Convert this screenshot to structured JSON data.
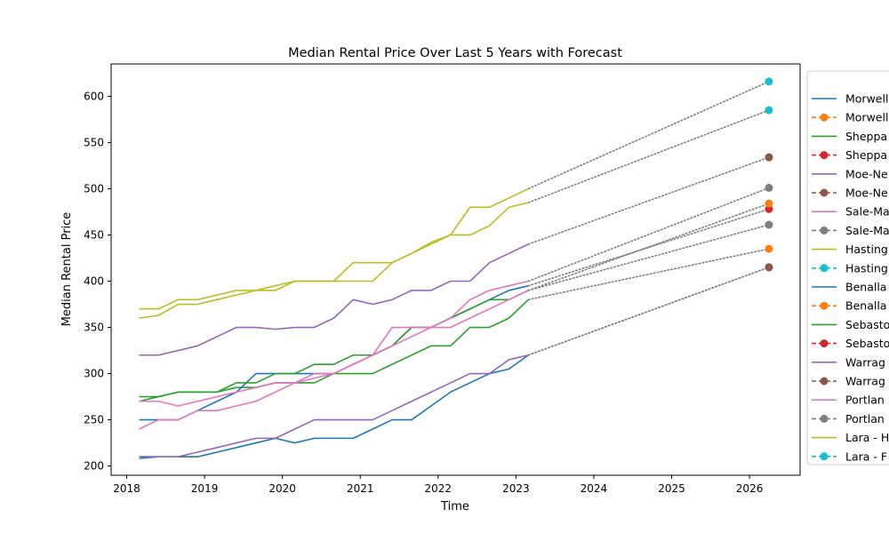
{
  "chart_data": {
    "type": "line",
    "title": "Median Rental Price Over Last 5 Years with Forecast",
    "xlabel": "Time",
    "ylabel": "Median Rental Price",
    "xlim": [
      2017.8,
      2026.65
    ],
    "ylim": [
      190,
      635
    ],
    "x_ticks": [
      2018,
      2019,
      2020,
      2021,
      2022,
      2023,
      2024,
      2025,
      2026
    ],
    "y_ticks": [
      200,
      250,
      300,
      350,
      400,
      450,
      500,
      550,
      600
    ],
    "forecast_x": 2026.25,
    "legend_position": "right, outside plot (clipped)",
    "legend": [
      {
        "label": "Morwell",
        "color": "#1f77b4",
        "style": "line"
      },
      {
        "label": "Morwell",
        "color": "#ff7f0e",
        "style": "dashed-marker"
      },
      {
        "label": "Sheppa",
        "color": "#2ca02c",
        "style": "line"
      },
      {
        "label": "Sheppa",
        "color": "#d62728",
        "style": "dashed-marker"
      },
      {
        "label": "Moe-Ne",
        "color": "#9467bd",
        "style": "line"
      },
      {
        "label": "Moe-Ne",
        "color": "#8c564b",
        "style": "dashed-marker"
      },
      {
        "label": "Sale-Ma",
        "color": "#e377c2",
        "style": "line"
      },
      {
        "label": "Sale-Ma",
        "color": "#7f7f7f",
        "style": "dashed-marker"
      },
      {
        "label": "Hasting",
        "color": "#bcbd22",
        "style": "line"
      },
      {
        "label": "Hasting",
        "color": "#17becf",
        "style": "dashed-marker"
      },
      {
        "label": "Benalla",
        "color": "#1f77b4",
        "style": "line"
      },
      {
        "label": "Benalla",
        "color": "#ff7f0e",
        "style": "dashed-marker"
      },
      {
        "label": "Sebasto",
        "color": "#2ca02c",
        "style": "line"
      },
      {
        "label": "Sebasto",
        "color": "#d62728",
        "style": "dashed-marker"
      },
      {
        "label": "Warrag",
        "color": "#9467bd",
        "style": "line"
      },
      {
        "label": "Warrag",
        "color": "#8c564b",
        "style": "dashed-marker"
      },
      {
        "label": "Portlan",
        "color": "#e377c2",
        "style": "line"
      },
      {
        "label": "Portlan",
        "color": "#7f7f7f",
        "style": "dashed-marker"
      },
      {
        "label": "Lara - H",
        "color": "#bcbd22",
        "style": "line"
      },
      {
        "label": "Lara - F",
        "color": "#17becf",
        "style": "dashed-marker"
      }
    ],
    "series": [
      {
        "color": "#1f77b4",
        "x": [
          2018.16,
          2018.41,
          2018.66,
          2018.91,
          2019.16,
          2019.41,
          2019.66,
          2019.91,
          2020.16,
          2020.41,
          2020.66,
          2020.91,
          2021.16,
          2021.41,
          2021.66,
          2021.91,
          2022.16,
          2022.41,
          2022.66,
          2022.91,
          2023.16
        ],
        "y": [
          210,
          210,
          210,
          210,
          215,
          220,
          225,
          230,
          225,
          230,
          230,
          230,
          240,
          250,
          250,
          265,
          280,
          290,
          300,
          305,
          320
        ],
        "forecast": {
          "y": 415,
          "marker_color": "#8c564b"
        }
      },
      {
        "color": "#2ca02c",
        "x": [
          2018.16,
          2018.41,
          2018.66,
          2018.91,
          2019.16,
          2019.41,
          2019.66,
          2019.91,
          2020.16,
          2020.41,
          2020.66,
          2020.91,
          2021.16,
          2021.41,
          2021.66,
          2021.91,
          2022.16,
          2022.41,
          2022.66,
          2022.91,
          2023.16
        ],
        "y": [
          275,
          275,
          280,
          280,
          280,
          285,
          285,
          290,
          290,
          290,
          300,
          300,
          300,
          310,
          320,
          330,
          330,
          350,
          350,
          360,
          380
        ],
        "forecast": {
          "y": 435,
          "marker_color": "#ff7f0e"
        }
      },
      {
        "color": "#1f77b4",
        "x": [
          2018.16,
          2018.41,
          2018.66,
          2018.91,
          2019.16,
          2019.41,
          2019.66,
          2019.91,
          2020.16,
          2020.41,
          2020.66,
          2020.91,
          2021.16,
          2021.41,
          2021.66,
          2021.91,
          2022.16,
          2022.41,
          2022.66,
          2022.91,
          2023.16
        ],
        "y": [
          250,
          250,
          250,
          260,
          270,
          280,
          300,
          300,
          300,
          300,
          300,
          310,
          320,
          330,
          350,
          350,
          360,
          370,
          380,
          390,
          395
        ],
        "forecast": {
          "y": 478,
          "marker_color": "#d62728"
        }
      },
      {
        "color": "#2ca02c",
        "x": [
          2018.16,
          2018.41,
          2018.66,
          2018.91,
          2019.16,
          2019.41,
          2019.66,
          2019.91,
          2020.16,
          2020.41,
          2020.66,
          2020.91,
          2021.16,
          2021.41,
          2021.66,
          2021.91,
          2022.16,
          2022.41,
          2022.66,
          2022.91,
          2023.16
        ],
        "y": [
          270,
          275,
          280,
          280,
          280,
          290,
          290,
          300,
          300,
          310,
          310,
          320,
          320,
          330,
          350,
          350,
          360,
          370,
          380,
          380,
          390
        ],
        "forecast": {
          "y": 484,
          "marker_color": "#ff7f0e"
        }
      },
      {
        "color": "#e377c2",
        "x": [
          2018.16,
          2018.41,
          2018.66,
          2018.91,
          2019.16,
          2019.41,
          2019.66,
          2019.91,
          2020.16,
          2020.41,
          2020.66,
          2020.91,
          2021.16,
          2021.41,
          2021.66,
          2021.91,
          2022.16,
          2022.41,
          2022.66,
          2022.91,
          2023.16
        ],
        "y": [
          240,
          250,
          250,
          260,
          260,
          265,
          270,
          280,
          290,
          295,
          300,
          310,
          320,
          350,
          350,
          350,
          360,
          380,
          390,
          395,
          400
        ],
        "forecast": {
          "y": 501,
          "marker_color": "#7f7f7f"
        }
      },
      {
        "color": "#e377c2",
        "x": [
          2018.16,
          2018.41,
          2018.66,
          2018.91,
          2019.16,
          2019.41,
          2019.66,
          2019.91,
          2020.16,
          2020.41,
          2020.66,
          2020.91,
          2021.16,
          2021.41,
          2021.66,
          2021.91,
          2022.16,
          2022.41,
          2022.66,
          2022.91,
          2023.16
        ],
        "y": [
          270,
          270,
          265,
          270,
          275,
          280,
          285,
          290,
          290,
          300,
          300,
          310,
          320,
          330,
          340,
          350,
          350,
          360,
          370,
          380,
          390
        ],
        "forecast": {
          "y": 461,
          "marker_color": "#7f7f7f"
        }
      },
      {
        "color": "#9467bd",
        "x": [
          2018.16,
          2018.41,
          2018.66,
          2018.91,
          2019.16,
          2019.41,
          2019.66,
          2019.91,
          2020.16,
          2020.41,
          2020.66,
          2020.91,
          2021.16,
          2021.41,
          2021.66,
          2021.91,
          2022.16,
          2022.41,
          2022.66,
          2022.91,
          2023.16
        ],
        "y": [
          208,
          210,
          210,
          215,
          220,
          225,
          230,
          230,
          240,
          250,
          250,
          250,
          250,
          260,
          270,
          280,
          290,
          300,
          300,
          315,
          320
        ],
        "forecast": {
          "y": 415,
          "marker_color": "#8c564b"
        }
      },
      {
        "color": "#9467bd",
        "x": [
          2018.16,
          2018.41,
          2018.66,
          2018.91,
          2019.16,
          2019.41,
          2019.66,
          2019.91,
          2020.16,
          2020.41,
          2020.66,
          2020.91,
          2021.16,
          2021.41,
          2021.66,
          2021.91,
          2022.16,
          2022.41,
          2022.66,
          2022.91,
          2023.16
        ],
        "y": [
          320,
          320,
          325,
          330,
          340,
          350,
          350,
          348,
          350,
          350,
          360,
          380,
          375,
          380,
          390,
          390,
          400,
          400,
          420,
          430,
          440
        ],
        "forecast": {
          "y": 534,
          "marker_color": "#8c564b"
        }
      },
      {
        "color": "#bcbd22",
        "x": [
          2018.16,
          2018.41,
          2018.66,
          2018.91,
          2019.16,
          2019.41,
          2019.66,
          2019.91,
          2020.16,
          2020.41,
          2020.66,
          2020.91,
          2021.16,
          2021.41,
          2021.66,
          2021.91,
          2022.16,
          2022.41,
          2022.66,
          2022.91,
          2023.16
        ],
        "y": [
          360,
          363,
          375,
          375,
          380,
          385,
          390,
          390,
          400,
          400,
          400,
          420,
          420,
          420,
          430,
          440,
          450,
          480,
          480,
          490,
          500
        ],
        "forecast": {
          "y": 616,
          "marker_color": "#17becf"
        }
      },
      {
        "color": "#bcbd22",
        "x": [
          2018.16,
          2018.41,
          2018.66,
          2018.91,
          2019.16,
          2019.41,
          2019.66,
          2019.91,
          2020.16,
          2020.41,
          2020.66,
          2020.91,
          2021.16,
          2021.41,
          2021.66,
          2021.91,
          2022.16,
          2022.41,
          2022.66,
          2022.91,
          2023.16
        ],
        "y": [
          370,
          370,
          380,
          380,
          385,
          390,
          390,
          395,
          400,
          400,
          400,
          400,
          400,
          420,
          430,
          442,
          450,
          450,
          460,
          480,
          485
        ],
        "forecast": {
          "y": 585,
          "marker_color": "#17becf"
        }
      }
    ]
  }
}
